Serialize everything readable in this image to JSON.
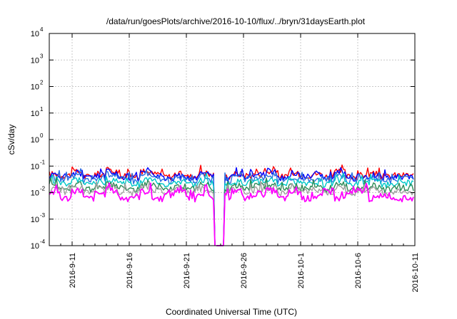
{
  "chart_data": {
    "type": "line",
    "title": "/data/run/goesPlots/archive/2016-10-10/flux/../bryn/31daysEarth.plot",
    "xlabel": "Coordinated Universal Time (UTC)",
    "ylabel": "cSv/day",
    "y_scale": "log",
    "ylim": [
      0.0001,
      10000
    ],
    "xlim": [
      "2016-09-09T00:00",
      "2016-10-11T00:00"
    ],
    "grid": true,
    "y_ticks": [
      {
        "base": "10",
        "exp": "-4",
        "value": 0.0001
      },
      {
        "base": "10",
        "exp": "-3",
        "value": 0.001
      },
      {
        "base": "10",
        "exp": "-2",
        "value": 0.01
      },
      {
        "base": "10",
        "exp": "-1",
        "value": 0.1
      },
      {
        "base": "10",
        "exp": "0",
        "value": 1
      },
      {
        "base": "10",
        "exp": "1",
        "value": 10
      },
      {
        "base": "10",
        "exp": "2",
        "value": 100
      },
      {
        "base": "10",
        "exp": "3",
        "value": 1000
      },
      {
        "base": "10",
        "exp": "4",
        "value": 10000
      }
    ],
    "x_ticks": [
      {
        "label": "2016-9-11",
        "date": "2016-09-11"
      },
      {
        "label": "2016-9-16",
        "date": "2016-09-16"
      },
      {
        "label": "2016-9-21",
        "date": "2016-09-21"
      },
      {
        "label": "2016-9-26",
        "date": "2016-09-26"
      },
      {
        "label": "2016-10-1",
        "date": "2016-10-01"
      },
      {
        "label": "2016-10-6",
        "date": "2016-10-06"
      },
      {
        "label": "2016-10-11",
        "date": "2016-10-11"
      }
    ],
    "data_gap": [
      "2016-09-23T12:00",
      "2016-09-24T06:00"
    ],
    "series": [
      {
        "color": "#ff0000",
        "values": [
          0.05,
          0.045,
          0.06,
          0.04,
          0.05,
          0.07,
          0.045,
          0.04,
          0.06,
          0.05,
          0.04,
          0.05,
          0.04,
          0.055,
          0.045,
          0.04,
          0.05,
          0.045,
          0.05,
          0.06,
          0.04,
          0.05,
          0.045,
          0.05,
          0.04,
          0.06,
          0.04,
          0.045,
          0.05,
          0.04,
          0.045,
          0.045
        ]
      },
      {
        "color": "#0000ff",
        "values": [
          0.045,
          0.04,
          0.055,
          0.035,
          0.045,
          0.06,
          0.04,
          0.035,
          0.055,
          0.045,
          0.035,
          0.045,
          0.035,
          0.05,
          0.04,
          0.035,
          0.045,
          0.04,
          0.045,
          0.055,
          0.035,
          0.045,
          0.04,
          0.045,
          0.035,
          0.055,
          0.035,
          0.04,
          0.045,
          0.035,
          0.04,
          0.04
        ]
      },
      {
        "color": "#2a6fe0",
        "values": [
          0.035,
          0.03,
          0.045,
          0.028,
          0.035,
          0.05,
          0.032,
          0.028,
          0.045,
          0.035,
          0.028,
          0.035,
          0.028,
          0.04,
          0.032,
          0.028,
          0.035,
          0.032,
          0.035,
          0.045,
          0.028,
          0.035,
          0.032,
          0.035,
          0.028,
          0.045,
          0.028,
          0.032,
          0.035,
          0.028,
          0.032,
          0.032
        ]
      },
      {
        "color": "#00c8c8",
        "values": [
          0.025,
          0.022,
          0.03,
          0.02,
          0.025,
          0.032,
          0.023,
          0.02,
          0.03,
          0.025,
          0.02,
          0.025,
          0.02,
          0.028,
          0.023,
          0.02,
          0.025,
          0.023,
          0.025,
          0.03,
          0.02,
          0.025,
          0.023,
          0.025,
          0.02,
          0.03,
          0.02,
          0.023,
          0.025,
          0.02,
          0.023,
          0.023
        ]
      },
      {
        "color": "#2e8b57",
        "values": [
          0.018,
          0.015,
          0.02,
          0.013,
          0.018,
          0.02,
          0.015,
          0.013,
          0.02,
          0.018,
          0.013,
          0.018,
          0.013,
          0.019,
          0.015,
          0.013,
          0.018,
          0.015,
          0.018,
          0.02,
          0.013,
          0.018,
          0.015,
          0.018,
          0.013,
          0.02,
          0.013,
          0.015,
          0.018,
          0.013,
          0.015,
          0.015
        ]
      },
      {
        "color": "#a0a0a0",
        "values": [
          0.013,
          0.011,
          0.015,
          0.01,
          0.013,
          0.016,
          0.011,
          0.01,
          0.015,
          0.013,
          0.01,
          0.013,
          0.01,
          0.014,
          0.011,
          0.01,
          0.013,
          0.011,
          0.013,
          0.015,
          0.01,
          0.013,
          0.011,
          0.013,
          0.01,
          0.015,
          0.01,
          0.011,
          0.013,
          0.01,
          0.011,
          0.011
        ]
      },
      {
        "color": "#ff00ff",
        "values": [
          0.01,
          0.006,
          0.012,
          0.006,
          0.009,
          0.012,
          0.006,
          0.007,
          0.011,
          0.006,
          0.008,
          0.012,
          0.006,
          0.01,
          0.006,
          0.007,
          0.011,
          0.006,
          0.009,
          0.012,
          0.006,
          0.01,
          0.006,
          0.007,
          0.011,
          0.006,
          0.009,
          0.012,
          0.006,
          0.008,
          0.006,
          0.006
        ]
      }
    ]
  }
}
